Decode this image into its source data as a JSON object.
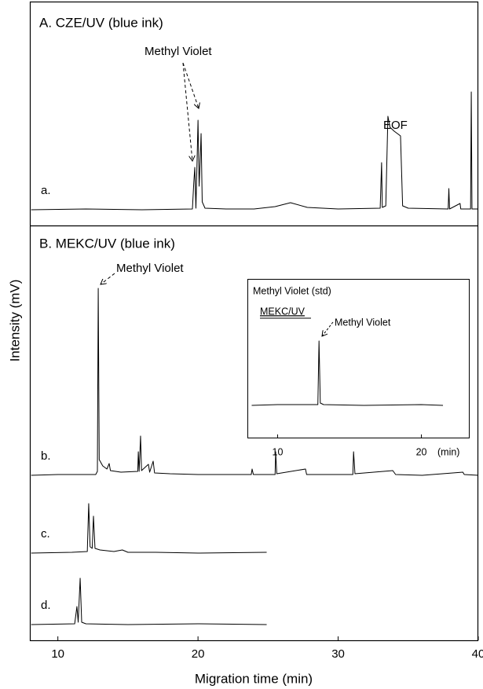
{
  "chart_data": [
    {
      "type": "line",
      "xlabel": "Migration time (min)",
      "ylabel": "Intensity (mV)",
      "xlim": [
        8,
        40
      ],
      "xticks": [
        10,
        20,
        30,
        40
      ],
      "panels": [
        {
          "title": "A. CZE/UV (blue ink)",
          "annotations": [
            "Methyl Violet",
            "EOF"
          ],
          "series": [
            {
              "name": "a.",
              "color": "#000000",
              "x": [
                8.1,
                12,
                16,
                19.6,
                19.7,
                19.77,
                19.85,
                19.93,
                20.0,
                20.08,
                20.15,
                20.22,
                20.3,
                20.5,
                22,
                24,
                25.5,
                26.6,
                27.8,
                30,
                33.0,
                33.1,
                33.15,
                33.4,
                33.55,
                33.7,
                34.0,
                34.45,
                34.6,
                35,
                37.85,
                37.9,
                37.95,
                38.7,
                38.75,
                39.45,
                39.5,
                39.55,
                40
              ],
              "values": [
                0,
                1,
                0,
                1,
                35,
                54,
                2,
                60,
                114,
                30,
                60,
                97,
                10,
                2,
                1,
                1,
                4,
                9,
                3,
                1,
                2,
                60,
                3,
                5,
                119,
                105,
                100,
                94,
                5,
                2,
                1,
                27,
                1,
                8,
                1,
                1,
                150,
                1,
                1
              ]
            }
          ]
        },
        {
          "title": "B. MEKC/UV (blue ink)",
          "annotations": [
            "Methyl Violet"
          ],
          "series": [
            {
              "name": "b.",
              "color": "#000000",
              "x": [
                8.1,
                10,
                12.7,
                12.82,
                12.88,
                12.95,
                13.2,
                13.5,
                13.66,
                13.75,
                14.5,
                15.7,
                15.74,
                15.8,
                15.9,
                15.97,
                16.46,
                16.55,
                16.8,
                16.9,
                18,
                20,
                23.8,
                23.86,
                23.95,
                25.5,
                25.54,
                25.62,
                27.67,
                27.75,
                31.05,
                31.1,
                31.2,
                33.9,
                34.1,
                36,
                38.9,
                39,
                40
              ],
              "values": [
                0,
                1,
                1,
                5,
                238,
                20,
                12,
                8,
                15,
                6,
                4,
                5,
                30,
                5,
                50,
                6,
                14,
                4,
                18,
                3,
                2,
                1,
                1,
                8,
                1,
                1,
                30,
                2,
                8,
                1,
                1,
                30,
                2,
                6,
                1,
                0,
                4,
                1,
                0
              ]
            },
            {
              "name": "c.",
              "color": "#000000",
              "x": [
                8.1,
                11,
                12.1,
                12.2,
                12.3,
                12.45,
                12.54,
                12.65,
                13,
                14,
                14.6,
                15,
                17,
                20,
                24.9
              ],
              "values": [
                0,
                1,
                2,
                63,
                8,
                6,
                47,
                6,
                4,
                2,
                4,
                1,
                1,
                0,
                1
              ]
            },
            {
              "name": "d.",
              "color": "#000000",
              "x": [
                8.1,
                11.2,
                11.36,
                11.45,
                11.59,
                11.7,
                12,
                15,
                20,
                24.9
              ],
              "values": [
                0,
                1,
                23,
                3,
                59,
                3,
                1,
                0,
                1,
                0
              ]
            }
          ]
        }
      ]
    },
    {
      "type": "line",
      "title": "Methyl Violet (std)",
      "subtitle": "MEKC/UV",
      "annotations": [
        "Methyl Violet"
      ],
      "xlabel": "(min)",
      "xlim": [
        7.9,
        23.3
      ],
      "xticks": [
        10,
        20
      ],
      "series": [
        {
          "color": "#000000",
          "x": [
            8.2,
            10,
            12.8,
            12.88,
            12.97,
            13.2,
            16,
            20,
            21.5
          ],
          "values": [
            0,
            1,
            1,
            82,
            3,
            1,
            0,
            1,
            0
          ]
        }
      ]
    }
  ]
}
